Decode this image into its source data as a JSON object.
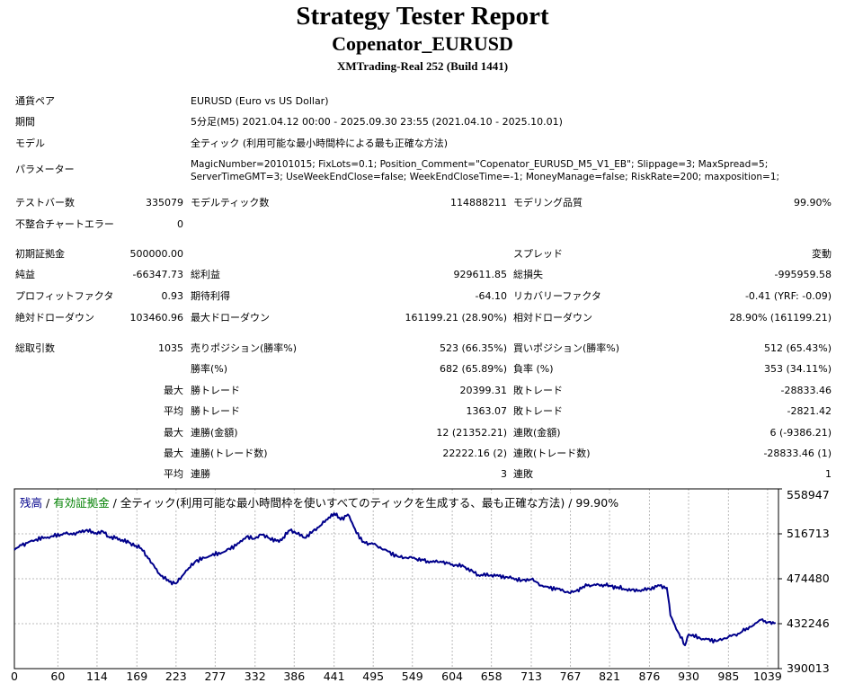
{
  "header": {
    "title": "Strategy Tester Report",
    "subtitle": "Copenator_EURUSD",
    "build": "XMTrading-Real 252 (Build 1441)"
  },
  "info": {
    "pair_label": "通貨ペア",
    "pair_value": "EURUSD (Euro vs US Dollar)",
    "period_label": "期間",
    "period_value": "5分足(M5) 2021.04.12 00:00 - 2025.09.30 23:55 (2021.04.10 - 2025.10.01)",
    "model_label": "モデル",
    "model_value": "全ティック (利用可能な最小時間枠による最も正確な方法)",
    "params_label": "パラメーター",
    "params_line1": "MagicNumber=20101015; FixLots=0.1; Position_Comment=\"Copenator_EURUSD_M5_V1_EB\"; Slippage=3; MaxSpread=5;",
    "params_line2": "ServerTimeGMT=3; UseWeekEndClose=false; WeekEndCloseTime=-1; MoneyManage=false; RiskRate=200; maxposition=1;"
  },
  "stats": {
    "bars_label": "テストバー数",
    "bars_value": "335079",
    "ticks_label": "モデルティック数",
    "ticks_value": "114888211",
    "quality_label": "モデリング品質",
    "quality_value": "99.90%",
    "errors_label": "不整合チャートエラー",
    "errors_value": "0",
    "deposit_label": "初期証拠金",
    "deposit_value": "500000.00",
    "spread_label": "スプレッド",
    "spread_value": "変動",
    "net_label": "純益",
    "net_value": "-66347.73",
    "gross_profit_label": "総利益",
    "gross_profit_value": "929611.85",
    "gross_loss_label": "総損失",
    "gross_loss_value": "-995959.58",
    "pf_label": "プロフィットファクタ",
    "pf_value": "0.93",
    "expected_label": "期待利得",
    "expected_value": "-64.10",
    "recovery_label": "リカバリーファクタ",
    "recovery_value": "-0.41 (YRF: -0.09)",
    "abs_dd_label": "絶対ドローダウン",
    "abs_dd_value": "103460.96",
    "max_dd_label": "最大ドローダウン",
    "max_dd_value": "161199.21 (28.90%)",
    "rel_dd_label": "相対ドローダウン",
    "rel_dd_value": "28.90% (161199.21)",
    "trades_label": "総取引数",
    "trades_value": "1035",
    "short_label": "売りポジション(勝率%)",
    "short_value": "523 (66.35%)",
    "long_label": "買いポジション(勝率%)",
    "long_value": "512 (65.43%)",
    "winrate_label": "勝率(%)",
    "winrate_value": "682 (65.89%)",
    "lossrate_label": "負率 (%)",
    "lossrate_value": "353 (34.11%)",
    "max_word": "最大",
    "avg_word": "平均",
    "largest_win_label": "勝トレード",
    "largest_win_value": "20399.31",
    "largest_loss_label": "敗トレード",
    "largest_loss_value": "-28833.46",
    "avg_win_label": "勝トレード",
    "avg_win_value": "1363.07",
    "avg_loss_label": "敗トレード",
    "avg_loss_value": "-2821.42",
    "max_consec_wins_label": "連勝(金額)",
    "max_consec_wins_value": "12 (21352.21)",
    "max_consec_losses_label": "連敗(金額)",
    "max_consec_losses_value": "6 (-9386.21)",
    "max_consec_profit_label": "連勝(トレード数)",
    "max_consec_profit_value": "22222.16 (2)",
    "max_consec_loss_label": "連敗(トレード数)",
    "max_consec_loss_value": "-28833.46 (1)",
    "avg_consec_wins_label": "連勝",
    "avg_consec_wins_value": "3",
    "avg_consec_losses_label": "連敗",
    "avg_consec_losses_value": "1"
  },
  "legend": {
    "balance": "残高",
    "sep1": " / ",
    "equity": "有効証拠金",
    "sep2": " / ",
    "desc": "全ティック(利用可能な最小時間枠を使いすべてのティックを生成する、最も正確な方法) / 99.90%"
  },
  "chart_data": {
    "type": "line",
    "series": [
      {
        "name": "残高",
        "x": [
          0,
          10,
          30,
          50,
          70,
          80,
          100,
          110,
          122,
          130,
          145,
          160,
          175,
          190,
          200,
          210,
          223,
          235,
          250,
          270,
          290,
          310,
          320,
          330,
          340,
          350,
          365,
          380,
          386,
          400,
          420,
          430,
          441,
          450,
          460,
          470,
          480,
          495,
          510,
          530,
          549,
          570,
          590,
          604,
          620,
          640,
          658,
          680,
          700,
          713,
          730,
          750,
          767,
          790,
          810,
          821,
          840,
          860,
          876,
          890,
          900,
          905,
          915,
          925,
          930,
          950,
          970,
          985,
          1000,
          1010,
          1020,
          1030,
          1039,
          1050
        ],
        "values": [
          501500,
          506000,
          511500,
          514000,
          517000,
          516000,
          520500,
          517000,
          519000,
          514000,
          512000,
          508000,
          503000,
          489000,
          479000,
          473000,
          470000,
          480000,
          491000,
          496000,
          500000,
          508000,
          514000,
          512000,
          516000,
          513000,
          509000,
          520000,
          519000,
          513000,
          523000,
          530000,
          536000,
          530000,
          535000,
          521000,
          509000,
          507000,
          502000,
          495000,
          494000,
          491000,
          490000,
          488000,
          486000,
          478000,
          478000,
          476000,
          473000,
          474000,
          467000,
          465000,
          461000,
          468000,
          469000,
          468000,
          465000,
          463000,
          465000,
          468000,
          466000,
          440000,
          425000,
          412000,
          422000,
          418000,
          416000,
          420000,
          423000,
          428000,
          431000,
          436000,
          433500,
          433000
        ]
      }
    ],
    "x_ticks": [
      "0",
      "60",
      "114",
      "169",
      "223",
      "277",
      "332",
      "386",
      "441",
      "495",
      "549",
      "604",
      "658",
      "713",
      "767",
      "821",
      "876",
      "930",
      "985",
      "1039"
    ],
    "y_ticks": [
      "558947",
      "516713",
      "474480",
      "432246",
      "390013"
    ],
    "ylim": [
      390013,
      558947
    ],
    "xlim": [
      0,
      1054
    ],
    "grid": true,
    "colors": {
      "balance": "#00008b",
      "equity": "#008000"
    }
  }
}
